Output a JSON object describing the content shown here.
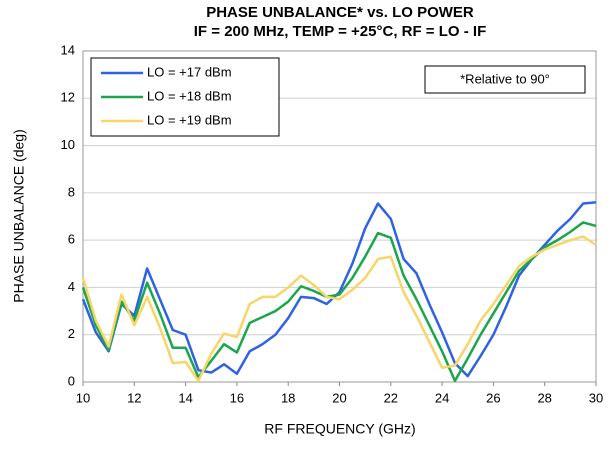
{
  "chart_data": {
    "type": "line",
    "title": "PHASE UNBALANCE* vs. LO POWER",
    "subtitle": "IF = 200 MHz, TEMP = +25°C, RF = LO - IF",
    "x_label": "RF FREQUENCY (GHz)",
    "y_label": "PHASE UNBALANCE (deg)",
    "annotation": "*Relative to 90°",
    "x": [
      10,
      10.5,
      11,
      11.5,
      12,
      12.5,
      13,
      13.5,
      14,
      14.5,
      15,
      15.5,
      16,
      16.5,
      17,
      17.5,
      18,
      18.5,
      19,
      19.5,
      20,
      20.5,
      21,
      21.5,
      22,
      22.5,
      23,
      23.5,
      24,
      24.5,
      25,
      25.5,
      26,
      26.5,
      27,
      27.5,
      28,
      28.5,
      29,
      29.5,
      30
    ],
    "series": [
      {
        "name": "LO = +17 dBm",
        "color": "#2f62e3",
        "values": [
          3.5,
          2.1,
          1.3,
          3.3,
          2.8,
          4.8,
          3.5,
          2.2,
          2.0,
          0.5,
          0.4,
          0.75,
          0.35,
          1.3,
          1.6,
          2.0,
          2.7,
          3.6,
          3.55,
          3.3,
          3.8,
          5.0,
          6.5,
          7.55,
          6.9,
          5.2,
          4.6,
          3.3,
          2.1,
          0.8,
          0.25,
          1.1,
          2.0,
          3.2,
          4.5,
          5.2,
          5.8,
          6.4,
          6.9,
          7.55,
          7.6
        ]
      },
      {
        "name": "LO = +18 dBm",
        "color": "#1aa64a",
        "values": [
          4.0,
          2.4,
          1.35,
          3.4,
          2.6,
          4.2,
          2.9,
          1.45,
          1.45,
          0.2,
          0.9,
          1.6,
          1.25,
          2.5,
          2.75,
          3.0,
          3.4,
          4.05,
          3.85,
          3.6,
          3.7,
          4.4,
          5.3,
          6.3,
          6.1,
          4.5,
          3.5,
          2.4,
          1.3,
          0.05,
          1.0,
          2.0,
          2.9,
          3.8,
          4.7,
          5.2,
          5.7,
          6.0,
          6.35,
          6.75,
          6.6
        ]
      },
      {
        "name": "LO = +19 dBm",
        "color": "#f8d568",
        "values": [
          4.4,
          2.6,
          1.5,
          3.7,
          2.4,
          3.6,
          2.3,
          0.8,
          0.85,
          0.05,
          1.2,
          2.05,
          1.9,
          3.3,
          3.6,
          3.6,
          4.0,
          4.5,
          4.1,
          3.6,
          3.5,
          3.9,
          4.4,
          5.2,
          5.3,
          3.8,
          2.8,
          1.7,
          0.6,
          0.7,
          1.6,
          2.6,
          3.3,
          4.1,
          4.9,
          5.3,
          5.6,
          5.8,
          6.0,
          6.15,
          5.8
        ]
      }
    ],
    "xlim": [
      10,
      30
    ],
    "xticks": [
      10,
      12,
      14,
      16,
      18,
      20,
      22,
      24,
      26,
      28,
      30
    ],
    "ylim": [
      0,
      14
    ],
    "yticks": [
      0,
      2,
      4,
      6,
      8,
      10,
      12,
      14
    ],
    "grid": true,
    "legend": "upper left"
  }
}
